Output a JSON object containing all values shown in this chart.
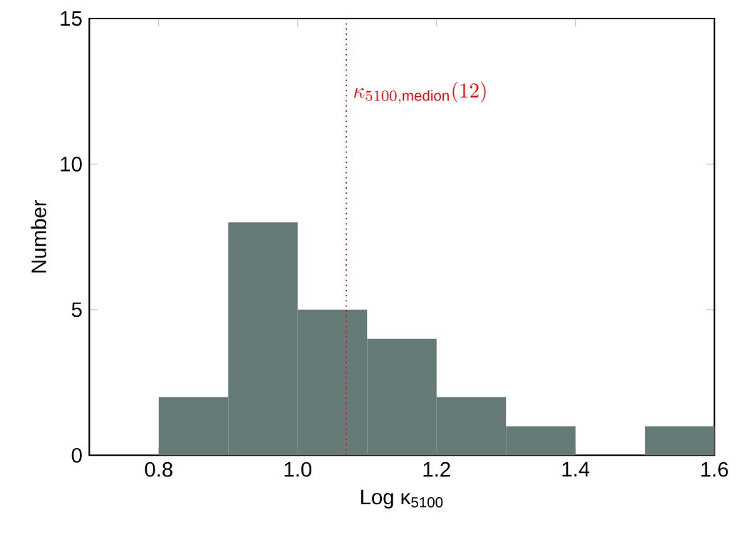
{
  "chart_data": {
    "type": "histogram",
    "xlabel": "Log κ$_{5100}$",
    "ylabel": "Number",
    "bins": [
      0.8,
      0.9,
      1.0,
      1.1,
      1.2,
      1.3,
      1.4,
      1.5,
      1.6
    ],
    "values": [
      2,
      8,
      5,
      4,
      2,
      1,
      0,
      1
    ],
    "color": "#667a77",
    "xlim": [
      0.7,
      1.6
    ],
    "ylim": [
      0,
      15
    ],
    "xticks": [
      {
        "value": 0.8,
        "label": "0.8"
      },
      {
        "value": 1.0,
        "label": "1.0"
      },
      {
        "value": 1.2,
        "label": "1.2"
      },
      {
        "value": 1.4,
        "label": "1.4"
      },
      {
        "value": 1.6,
        "label": "1.6"
      }
    ],
    "yticks": [
      0,
      5,
      10,
      15
    ],
    "ref_lines": [
      {
        "axis": "x",
        "value": 1.07,
        "label": "\\kappa_{5100,\\mathrm{medion}}(12)",
        "color": "#ff0000",
        "line_style": "dotted"
      }
    ],
    "grid": false
  }
}
